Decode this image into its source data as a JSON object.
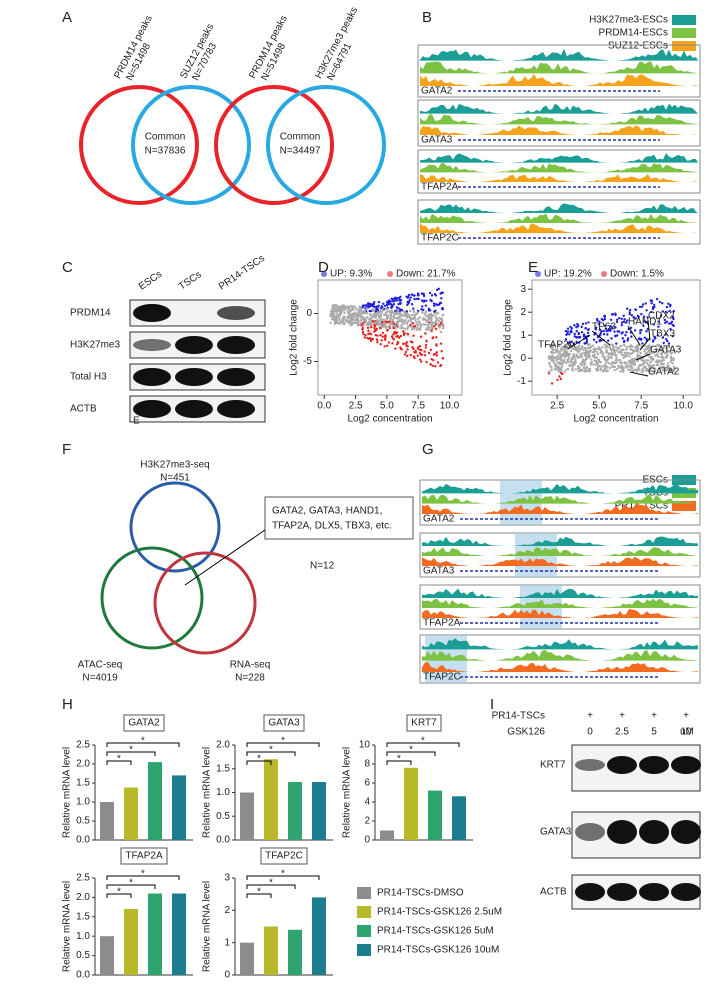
{
  "panel_labels": [
    "A",
    "B",
    "C",
    "D",
    "E",
    "F",
    "G",
    "H",
    "I"
  ],
  "A": {
    "venns": [
      {
        "left": {
          "label": "PRDM14 peaks",
          "n": "N=51498"
        },
        "right": {
          "label": "SUZ12 peaks",
          "n": "N=70783"
        },
        "common": "Common",
        "common_n": "N=37836"
      },
      {
        "left": {
          "label": "PRDM14 peaks",
          "n": "N=51498"
        },
        "right": {
          "label": "H3K27me3 peaks",
          "n": "N=64791"
        },
        "common": "Common",
        "common_n": "N=34497"
      }
    ],
    "left_color": "#e8242a",
    "right_color": "#29a9e1"
  },
  "B": {
    "legend": [
      {
        "name": "H3K27me3-ESCs",
        "color": "#1a9e96"
      },
      {
        "name": "PRDM14-ESCs",
        "color": "#7dc242"
      },
      {
        "name": "SUZ12-ESCs",
        "color": "#f5a31a"
      }
    ],
    "tracks": [
      "GATA2",
      "GATA3",
      "TFAP2A",
      "TFAP2C"
    ]
  },
  "C": {
    "columns": [
      "ESCs",
      "TSCs",
      "PR14-TSCs"
    ],
    "rows": [
      "PRDM14",
      "H3K27me3",
      "Total H3",
      "ACTB"
    ],
    "note": "E"
  },
  "D": {
    "type": "scatter",
    "up": "UP: 9.3%",
    "down": "Down: 21.7%",
    "up_color": "#1f1fe0",
    "down_color": "#e82020",
    "xlabel": "Log2 concentration",
    "ylabel": "Log2 fold change",
    "xlim": [
      -0.5,
      11
    ],
    "xticks": [
      {
        "value": 0,
        "label": "0.0"
      },
      {
        "value": 2.5,
        "label": "2.5"
      },
      {
        "value": 5,
        "label": "5.0"
      },
      {
        "value": 7.5,
        "label": "7.5"
      },
      {
        "value": 10,
        "label": "10.0"
      }
    ],
    "ylim": [
      -8.5,
      3.5
    ],
    "yticks": [
      0,
      -5
    ]
  },
  "E": {
    "type": "scatter",
    "up": "UP: 19.2%",
    "down": "Down: 1.5%",
    "up_color": "#1f1fe0",
    "down_color": "#e82020",
    "xlabel": "Log2 concentration",
    "ylabel": "Log2 fold change",
    "xlim": [
      1,
      11
    ],
    "xticks": [
      {
        "value": 2.5,
        "label": "2.5"
      },
      {
        "value": 5,
        "label": "5.0"
      },
      {
        "value": 7.5,
        "label": "7.5"
      },
      {
        "value": 10,
        "label": "10.0"
      }
    ],
    "ylim": [
      -1.6,
      3.4
    ],
    "yticks": [
      -1,
      0,
      1,
      2,
      3
    ],
    "genes": [
      "TP63",
      "HAND1",
      "CDX2",
      "TBX3",
      "GATA3",
      "TFAP2A",
      "GATA2"
    ]
  },
  "F": {
    "sets": [
      {
        "name": "H3K27me3-seq",
        "n": "N=451",
        "color": "#2a5caa"
      },
      {
        "name": "ATAC-seq",
        "n": "N=4019",
        "color": "#1e7a3c"
      },
      {
        "name": "RNA-seq",
        "n": "N=228",
        "color": "#c0343c"
      }
    ],
    "overlap_genes": [
      "GATA2, GATA3, HAND1,",
      "TFAP2A, DLX5, TBX3, etc."
    ],
    "overlap_n": "N=12"
  },
  "G": {
    "legend": [
      {
        "name": "ESCs",
        "color": "#1a9e96"
      },
      {
        "name": "TSCs",
        "color": "#7dc242"
      },
      {
        "name": "PR14-TSCs",
        "color": "#f26b21"
      }
    ],
    "tracks": [
      "GATA2",
      "GATA3",
      "TFAP2A",
      "TFAP2C"
    ]
  },
  "H": {
    "ylabel": "Relative mRNA level",
    "legend": [
      {
        "name": "PR14-TSCs-DMSO",
        "color": "#8c8c8c"
      },
      {
        "name": "PR14-TSCs-GSK126 2.5uM",
        "color": "#b7b928"
      },
      {
        "name": "PR14-TSCs-GSK126 5uM",
        "color": "#2ea56e"
      },
      {
        "name": "PR14-TSCs-GSK126 10uM",
        "color": "#1b7d8e"
      }
    ],
    "charts": [
      {
        "type": "bar",
        "title": "GATA2",
        "values": [
          1.0,
          1.38,
          2.05,
          1.7
        ],
        "ylim": [
          0,
          2.5
        ],
        "yticks": [
          {
            "value": 0,
            "label": "0.0"
          },
          {
            "value": 0.5,
            "label": "0.5"
          },
          {
            "value": 1,
            "label": "1.0"
          },
          {
            "value": 1.5,
            "label": "1.5"
          },
          {
            "value": 2,
            "label": "2.0"
          },
          {
            "value": 2.5,
            "label": "2.5"
          }
        ],
        "stars": [
          "*",
          "*",
          "*"
        ]
      },
      {
        "type": "bar",
        "title": "GATA3",
        "values": [
          1.0,
          1.7,
          1.22,
          1.22
        ],
        "ylim": [
          0,
          2
        ],
        "yticks": [
          {
            "value": 0,
            "label": "0.0"
          },
          {
            "value": 0.5,
            "label": "0.5"
          },
          {
            "value": 1,
            "label": "1.0"
          },
          {
            "value": 1.5,
            "label": "1.5"
          },
          {
            "value": 2,
            "label": "2.0"
          }
        ],
        "stars": [
          "*",
          "*",
          "*"
        ]
      },
      {
        "type": "bar",
        "title": "KRT7",
        "values": [
          1.0,
          7.6,
          5.2,
          4.6
        ],
        "ylim": [
          0,
          10
        ],
        "yticks": [
          0,
          2,
          4,
          6,
          8,
          10
        ],
        "stars": [
          "*",
          "*",
          "*"
        ]
      },
      {
        "type": "bar",
        "title": "TFAP2A",
        "values": [
          1.0,
          1.7,
          2.1,
          2.1
        ],
        "ylim": [
          0,
          2.5
        ],
        "yticks": [
          {
            "value": 0,
            "label": "0.0"
          },
          {
            "value": 0.5,
            "label": "0.5"
          },
          {
            "value": 1,
            "label": "1.0"
          },
          {
            "value": 1.5,
            "label": "1.5"
          },
          {
            "value": 2,
            "label": "2.0"
          },
          {
            "value": 2.5,
            "label": "2.5"
          }
        ],
        "stars": [
          "*",
          "*",
          "*"
        ]
      },
      {
        "type": "bar",
        "title": "TFAP2C",
        "values": [
          1.0,
          1.5,
          1.4,
          2.4
        ],
        "ylim": [
          0,
          3
        ],
        "yticks": [
          0,
          1,
          2,
          3
        ],
        "stars": [
          "*",
          "*",
          "*"
        ]
      }
    ]
  },
  "I": {
    "conditions": [
      {
        "label": "PR14-TSCs",
        "values": [
          "+",
          "+",
          "+",
          "+"
        ]
      },
      {
        "label": "GSK126",
        "values": [
          "0",
          "2.5",
          "5",
          "10"
        ],
        "unit": "uM"
      }
    ],
    "bands": [
      "KRT7",
      "GATA3",
      "ACTB"
    ]
  }
}
